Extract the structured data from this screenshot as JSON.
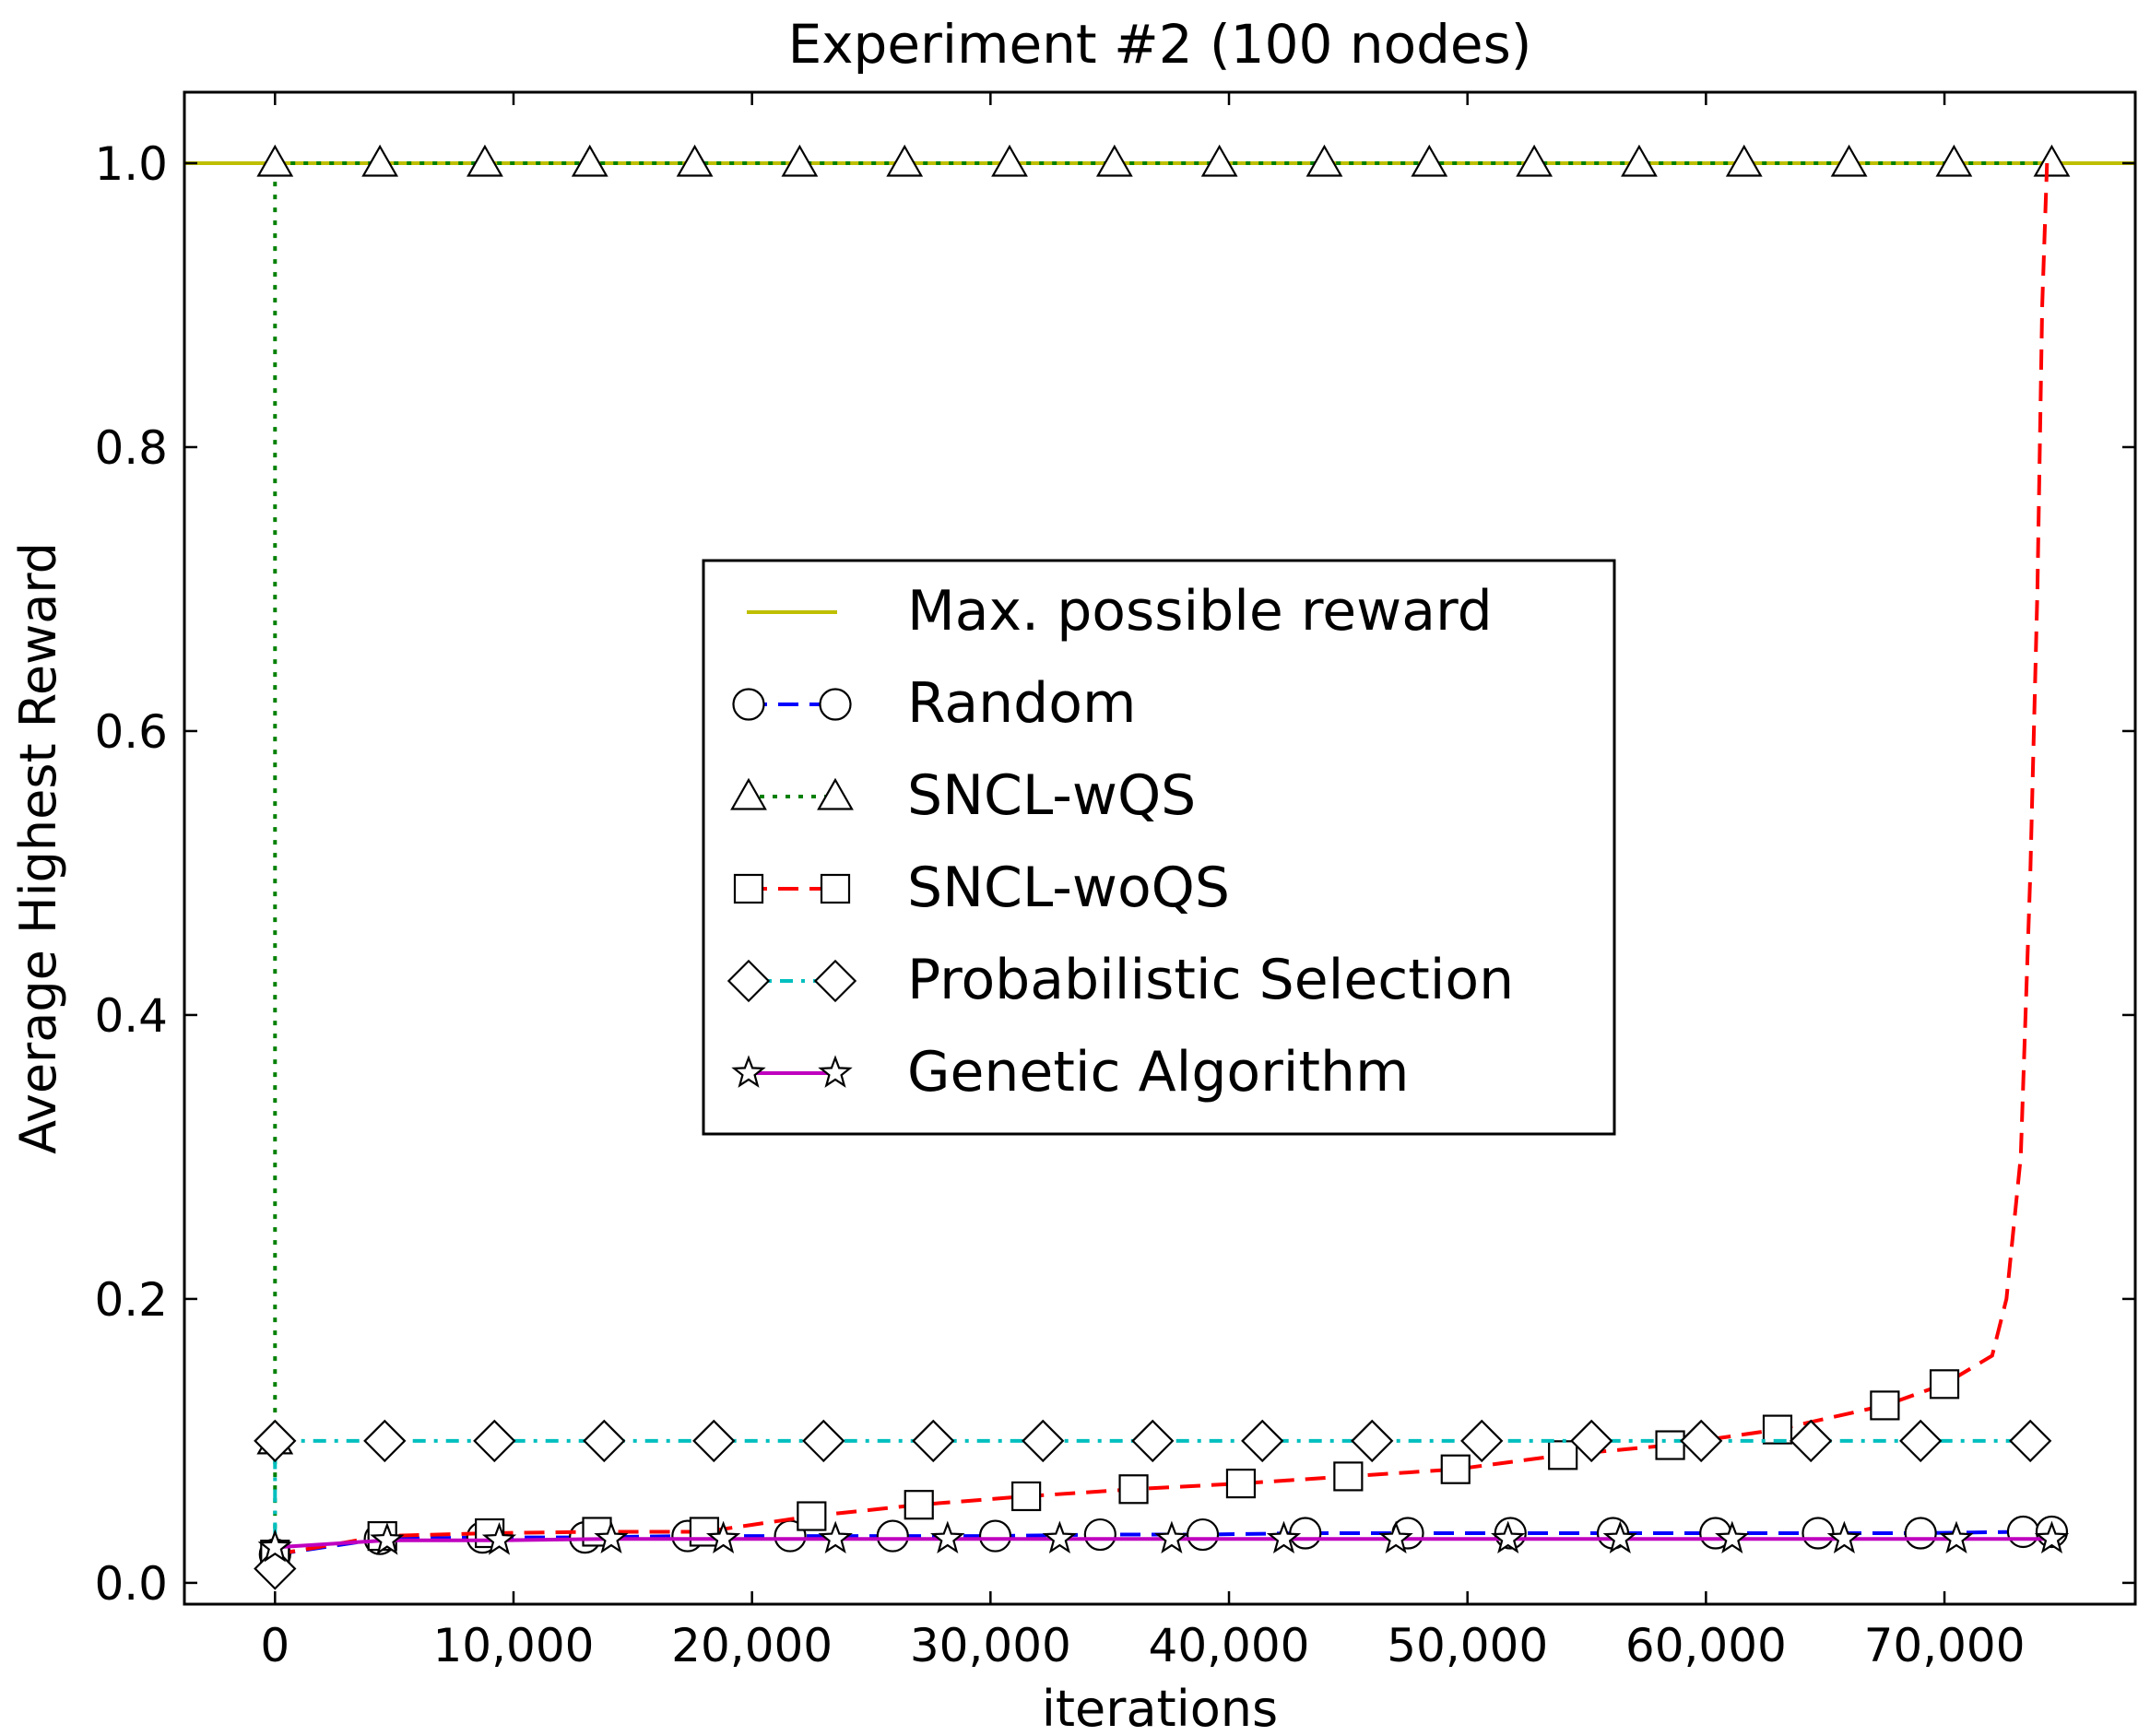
{
  "chart_data": {
    "type": "line",
    "title": "Experiment #2 (100 nodes)",
    "xlabel": "iterations",
    "ylabel": "Average Highest Reward",
    "xlim": [
      -3800,
      78000
    ],
    "ylim": [
      -0.015,
      1.05
    ],
    "xticks": [
      0,
      10000,
      20000,
      30000,
      40000,
      50000,
      60000,
      70000
    ],
    "xtick_labels": [
      "0",
      "10,000",
      "20,000",
      "30,000",
      "40,000",
      "50,000",
      "60,000",
      "70,000"
    ],
    "yticks": [
      0.0,
      0.2,
      0.4,
      0.6,
      0.8,
      1.0
    ],
    "ytick_labels": [
      "0.0",
      "0.2",
      "0.4",
      "0.6",
      "0.8",
      "1.0"
    ],
    "legend_position": "center",
    "series": [
      {
        "name": "Max. possible reward",
        "color": "#bfbf00",
        "dash": "solid",
        "marker": "none",
        "x": [
          -3800,
          78000
        ],
        "y": [
          1.0,
          1.0
        ]
      },
      {
        "name": "Random",
        "color": "#0000ff",
        "dash": "dashed",
        "marker": "circle",
        "x": [
          0,
          4400,
          8700,
          13000,
          17300,
          21600,
          25900,
          30200,
          34600,
          38900,
          43200,
          47500,
          51800,
          56100,
          60400,
          64700,
          69000,
          73300,
          74500
        ],
        "y": [
          0.02,
          0.031,
          0.032,
          0.032,
          0.033,
          0.033,
          0.033,
          0.033,
          0.034,
          0.034,
          0.035,
          0.035,
          0.035,
          0.035,
          0.035,
          0.035,
          0.035,
          0.036,
          0.036
        ]
      },
      {
        "name": "SNCL-wQS",
        "color": "#008000",
        "dash": "dotted",
        "marker": "triangle",
        "x": [
          0,
          0,
          0,
          4400,
          8800,
          13200,
          17600,
          22000,
          26400,
          30800,
          35200,
          39600,
          44000,
          48400,
          52800,
          57200,
          61600,
          66000,
          70400,
          74500
        ],
        "y": [
          0.02,
          0.1,
          1.0,
          1.0,
          1.0,
          1.0,
          1.0,
          1.0,
          1.0,
          1.0,
          1.0,
          1.0,
          1.0,
          1.0,
          1.0,
          1.0,
          1.0,
          1.0,
          1.0,
          1.0
        ]
      },
      {
        "name": "SNCL-woQS",
        "color": "#ff0000",
        "dash": "dashed",
        "marker": "square",
        "x": [
          0,
          4500,
          9000,
          13500,
          18000,
          22500,
          27000,
          31500,
          36000,
          40500,
          45000,
          49500,
          54000,
          58500,
          63000,
          67500,
          70000,
          72000,
          72600,
          73200,
          73600,
          73900,
          74100,
          74300
        ],
        "y": [
          0.02,
          0.033,
          0.035,
          0.036,
          0.036,
          0.047,
          0.055,
          0.061,
          0.066,
          0.07,
          0.075,
          0.08,
          0.09,
          0.097,
          0.108,
          0.125,
          0.14,
          0.16,
          0.2,
          0.3,
          0.5,
          0.7,
          0.9,
          1.0
        ],
        "marker_count": 17
      },
      {
        "name": "Probabilistic Selection",
        "color": "#00bfbf",
        "dash": "dashdot",
        "marker": "diamond",
        "x": [
          0,
          0,
          4600,
          9200,
          13800,
          18400,
          23000,
          27600,
          32200,
          36800,
          41400,
          46000,
          50600,
          55200,
          59800,
          64400,
          69000,
          73600
        ],
        "y": [
          0.01,
          0.1,
          0.1,
          0.1,
          0.1,
          0.1,
          0.1,
          0.1,
          0.1,
          0.1,
          0.1,
          0.1,
          0.1,
          0.1,
          0.1,
          0.1,
          0.1,
          0.1
        ]
      },
      {
        "name": "Genetic Algorithm",
        "color": "#bf00bf",
        "dash": "solid",
        "marker": "star",
        "x": [
          0,
          4700,
          9400,
          14100,
          18800,
          23500,
          28200,
          32900,
          37600,
          42300,
          47000,
          51700,
          56400,
          61100,
          65800,
          70500,
          74500
        ],
        "y": [
          0.025,
          0.03,
          0.03,
          0.031,
          0.031,
          0.031,
          0.031,
          0.031,
          0.031,
          0.031,
          0.031,
          0.031,
          0.031,
          0.031,
          0.031,
          0.031,
          0.031
        ]
      }
    ]
  }
}
